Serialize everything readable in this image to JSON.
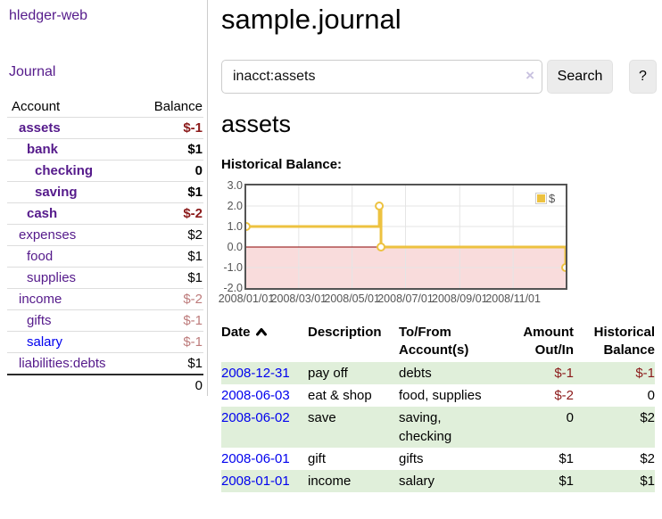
{
  "sidebar": {
    "app_title": "hledger-web",
    "journal_label": "Journal",
    "accounts_table": {
      "headers": {
        "account": "Account",
        "balance": "Balance"
      },
      "rows": [
        {
          "name": "assets",
          "balance": "$-1",
          "indent": 1,
          "bold": true,
          "name_color": "purple",
          "balance_color": "strong-neg"
        },
        {
          "name": "bank",
          "balance": "$1",
          "indent": 2,
          "bold": true,
          "name_color": "purple",
          "balance_color": "black"
        },
        {
          "name": "checking",
          "balance": "0",
          "indent": 3,
          "bold": true,
          "name_color": "purple",
          "balance_color": "black"
        },
        {
          "name": "saving",
          "balance": "$1",
          "indent": 3,
          "bold": true,
          "name_color": "purple",
          "balance_color": "black"
        },
        {
          "name": "cash",
          "balance": "$-2",
          "indent": 2,
          "bold": true,
          "name_color": "purple",
          "balance_color": "strong-neg"
        },
        {
          "name": "expenses",
          "balance": "$2",
          "indent": 1,
          "bold": false,
          "name_color": "purple",
          "balance_color": "black"
        },
        {
          "name": "food",
          "balance": "$1",
          "indent": 2,
          "bold": false,
          "name_color": "purple",
          "balance_color": "black"
        },
        {
          "name": "supplies",
          "balance": "$1",
          "indent": 2,
          "bold": false,
          "name_color": "purple",
          "balance_color": "black"
        },
        {
          "name": "income",
          "balance": "$-2",
          "indent": 1,
          "bold": false,
          "name_color": "purple",
          "balance_color": "soft-neg"
        },
        {
          "name": "gifts",
          "balance": "$-1",
          "indent": 2,
          "bold": false,
          "name_color": "purple",
          "balance_color": "soft-neg"
        },
        {
          "name": "salary",
          "balance": "$-1",
          "indent": 2,
          "bold": false,
          "name_color": "blue",
          "balance_color": "soft-neg"
        },
        {
          "name": "liabilities:debts",
          "balance": "$1",
          "indent": 1,
          "bold": false,
          "name_color": "purple",
          "balance_color": "black"
        }
      ],
      "total": "0"
    }
  },
  "header": {
    "title": "sample.journal"
  },
  "search": {
    "query": "inacct:assets",
    "clear_icon": "×",
    "search_button": "Search",
    "help_button": "?"
  },
  "account_page": {
    "title": "assets",
    "chart_heading": "Historical Balance:"
  },
  "chart_data": {
    "type": "line",
    "step": true,
    "title": "Historical Balance",
    "legend": "$",
    "legend_position": "top-right",
    "series": [
      {
        "name": "$",
        "color": "#edc240",
        "points": [
          [
            "2008-01-01",
            1
          ],
          [
            "2008-06-01",
            2
          ],
          [
            "2008-06-03",
            0
          ],
          [
            "2008-12-31",
            -1
          ]
        ]
      }
    ],
    "x_ticks": [
      "2008/01/01",
      "2008/03/01",
      "2008/05/01",
      "2008/07/01",
      "2008/09/01",
      "2008/11/01"
    ],
    "y_ticks": [
      "3.0",
      "2.0",
      "1.0",
      "0.0",
      "-1.0",
      "-2.0"
    ],
    "ylim": [
      -2,
      3
    ],
    "xlim": [
      "2008-01-01",
      "2008-12-31"
    ],
    "grid": true
  },
  "register": {
    "headers": {
      "date": "Date",
      "description": "Description",
      "tofrom_line1": "To/From",
      "tofrom_line2": "Account(s)",
      "amount_line1": "Amount",
      "amount_line2": "Out/In",
      "balance_line1": "Historical",
      "balance_line2": "Balance"
    },
    "sort": "date-ascending",
    "rows": [
      {
        "date": "2008-12-31",
        "description": "pay off",
        "accounts_lines": [
          "debts"
        ],
        "amount": "$-1",
        "balance": "$-1",
        "amount_negative": true,
        "balance_negative": true,
        "stripe": true
      },
      {
        "date": "2008-06-03",
        "description": "eat & shop",
        "accounts_lines": [
          "food, supplies"
        ],
        "amount": "$-2",
        "balance": "0",
        "amount_negative": true,
        "balance_negative": false,
        "stripe": false
      },
      {
        "date": "2008-06-02",
        "description": "save",
        "accounts_lines": [
          "saving,",
          "checking"
        ],
        "amount": "0",
        "balance": "$2",
        "amount_negative": false,
        "balance_negative": false,
        "stripe": true
      },
      {
        "date": "2008-06-01",
        "description": "gift",
        "accounts_lines": [
          "gifts"
        ],
        "amount": "$1",
        "balance": "$2",
        "amount_negative": false,
        "balance_negative": false,
        "stripe": false
      },
      {
        "date": "2008-01-01",
        "description": "income",
        "accounts_lines": [
          "salary"
        ],
        "amount": "$1",
        "balance": "$1",
        "amount_negative": false,
        "balance_negative": false,
        "stripe": true
      }
    ]
  },
  "colors": {
    "link_purple": "#551a8b",
    "link_blue": "#0000ee",
    "negative_strong": "#8b1a1a",
    "negative_soft": "#bd7b7b",
    "row_stripe_green": "#e0efda",
    "series_gold": "#edc240",
    "negative_region_pink": "#f9dcdc",
    "zero_line_red": "#8b0000",
    "grid_line": "#e5e5e5",
    "plot_border": "#545454"
  }
}
